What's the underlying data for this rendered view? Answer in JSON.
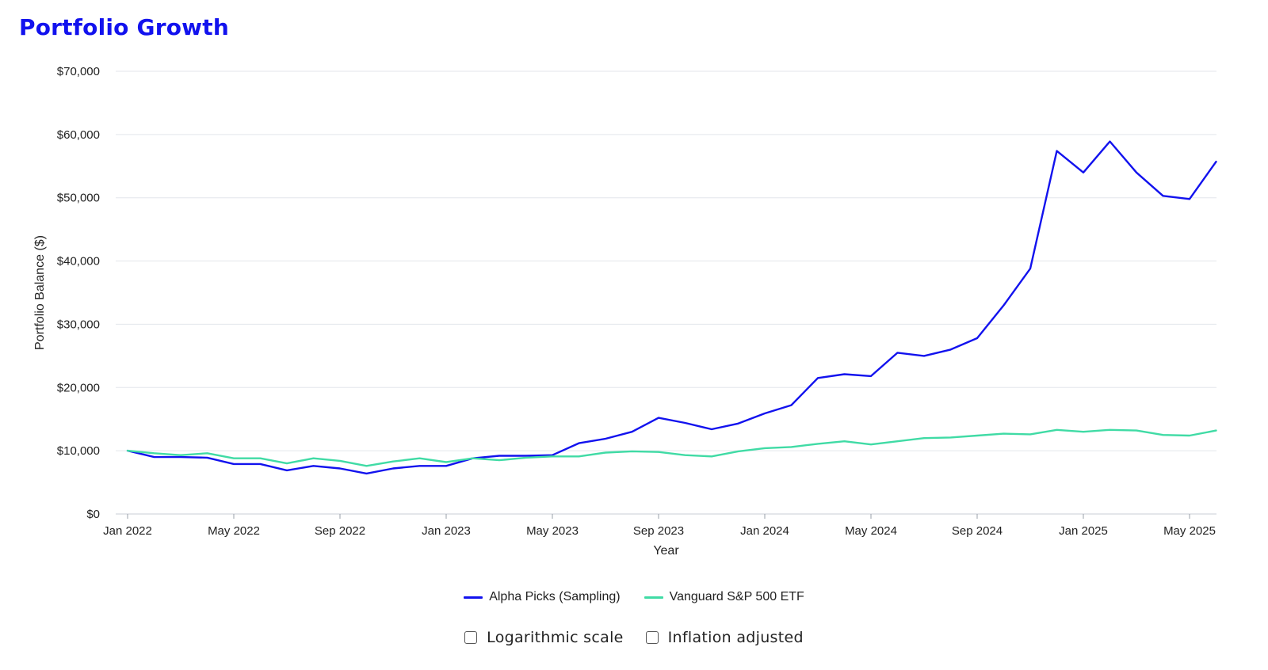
{
  "page": {
    "title": "Portfolio Growth",
    "title_color": "#1212ee"
  },
  "options": {
    "log_scale_label": "Logarithmic scale",
    "log_scale_checked": false,
    "inflation_label": "Inflation adjusted",
    "inflation_checked": false
  },
  "chart_data": {
    "type": "line",
    "title": "Portfolio Growth",
    "xlabel": "Year",
    "ylabel": "Portfolio Balance ($)",
    "ylim": [
      0,
      70000
    ],
    "y_ticks": [
      0,
      10000,
      20000,
      30000,
      40000,
      50000,
      60000,
      70000
    ],
    "y_tick_labels": [
      "$0",
      "$10,000",
      "$20,000",
      "$30,000",
      "$40,000",
      "$50,000",
      "$60,000",
      "$70,000"
    ],
    "x_tick_labels": [
      "Jan 2022",
      "May 2022",
      "Sep 2022",
      "Jan 2023",
      "May 2023",
      "Sep 2023",
      "Jan 2024",
      "May 2024",
      "Sep 2024",
      "Jan 2025",
      "May 2025"
    ],
    "x_tick_dates": [
      "2022-01",
      "2022-05",
      "2022-09",
      "2023-01",
      "2023-05",
      "2023-09",
      "2024-01",
      "2024-05",
      "2024-09",
      "2025-01",
      "2025-05"
    ],
    "grid": true,
    "legend_position": "bottom",
    "x": [
      "2022-01",
      "2022-02",
      "2022-03",
      "2022-04",
      "2022-05",
      "2022-06",
      "2022-07",
      "2022-08",
      "2022-09",
      "2022-10",
      "2022-11",
      "2022-12",
      "2023-01",
      "2023-02",
      "2023-03",
      "2023-04",
      "2023-05",
      "2023-06",
      "2023-07",
      "2023-08",
      "2023-09",
      "2023-10",
      "2023-11",
      "2023-12",
      "2024-01",
      "2024-02",
      "2024-03",
      "2024-04",
      "2024-05",
      "2024-06",
      "2024-07",
      "2024-08",
      "2024-09",
      "2024-10",
      "2024-11",
      "2024-12",
      "2025-01",
      "2025-02",
      "2025-03",
      "2025-04",
      "2025-05",
      "2025-06"
    ],
    "series": [
      {
        "name": "Alpha Picks (Sampling)",
        "color": "#1212ee",
        "values": [
          10000,
          9000,
          9000,
          8900,
          7900,
          7900,
          6900,
          7600,
          7200,
          6400,
          7200,
          7600,
          7600,
          8800,
          9200,
          9200,
          9300,
          11200,
          11900,
          13000,
          15200,
          14400,
          13400,
          14300,
          15900,
          17200,
          21500,
          22100,
          21800,
          25500,
          25000,
          26000,
          27800,
          33000,
          38800,
          57400,
          54000,
          58900,
          54000,
          50300,
          49800,
          55700
        ]
      },
      {
        "name": "Vanguard S&P 500 ETF",
        "color": "#40dba5",
        "values": [
          10000,
          9600,
          9300,
          9600,
          8800,
          8800,
          8000,
          8800,
          8400,
          7600,
          8300,
          8800,
          8200,
          8800,
          8500,
          8900,
          9100,
          9100,
          9700,
          9900,
          9800,
          9300,
          9100,
          9900,
          10400,
          10600,
          11100,
          11500,
          11000,
          11500,
          12000,
          12100,
          12400,
          12700,
          12600,
          13300,
          13000,
          13300,
          13200,
          12500,
          12400,
          13200
        ]
      }
    ]
  }
}
